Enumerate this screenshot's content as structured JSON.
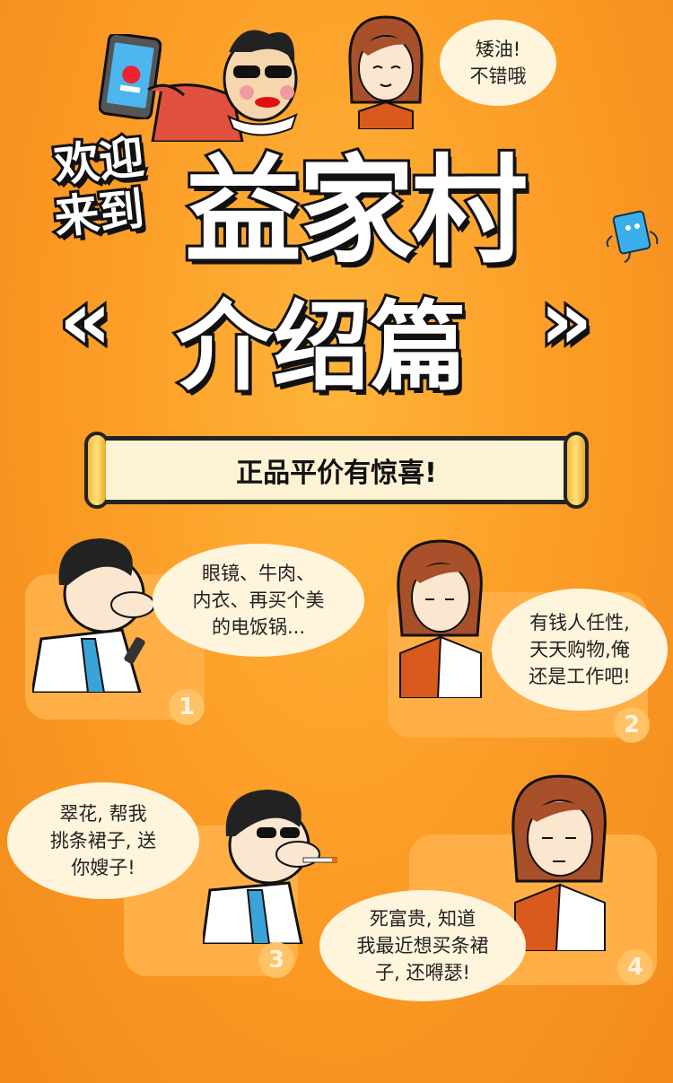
{
  "header": {
    "welcome_1": "欢迎",
    "welcome_2": "来到",
    "village": "益家村",
    "subtitle": "介绍篇",
    "left_mark": "«",
    "right_mark": "»",
    "woman_bubble_line1": "矮油!",
    "woman_bubble_line2": "不错哦"
  },
  "banner": {
    "text": "正品平价有惊喜!"
  },
  "panels": [
    {
      "number": "1",
      "lines": [
        "眼镜、牛肉、",
        "内衣、再买个美",
        "的电饭锅..."
      ]
    },
    {
      "number": "2",
      "lines": [
        "有钱人任性,",
        "天天购物,俺",
        "还是工作吧!"
      ]
    },
    {
      "number": "3",
      "lines": [
        "翠花, 帮我",
        "挑条裙子, 送",
        "你嫂子!"
      ]
    },
    {
      "number": "4",
      "lines": [
        "死富贵, 知道",
        "我最近想买条裙",
        "子, 还嘚瑟!"
      ]
    }
  ]
}
